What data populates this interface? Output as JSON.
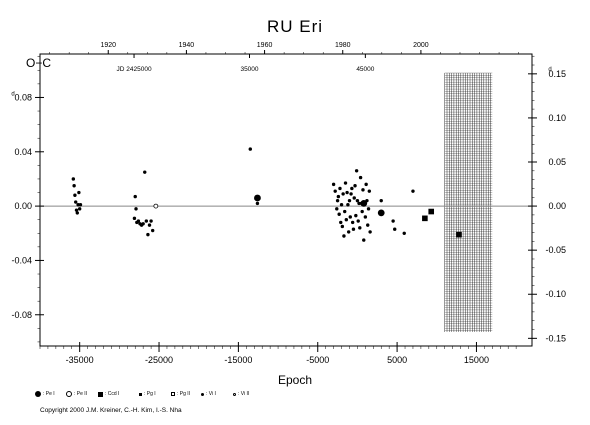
{
  "chart_data": {
    "type": "scatter",
    "title": "RU Eri",
    "xlabel": "Epoch",
    "ylabel": "O−C",
    "ylabel_unit": "d",
    "xlim": [
      -40000,
      22000
    ],
    "ylim": [
      -0.103,
      0.112
    ],
    "x_ticks": [
      "-35000",
      "-25000",
      "-15000",
      "-5000",
      "5000",
      "15000"
    ],
    "x_tick_values": [
      -35000,
      -25000,
      -15000,
      -5000,
      5000,
      15000
    ],
    "y_left_ticks": [
      "-0.08",
      "-0.04",
      "0.00",
      "0.04",
      "0.08"
    ],
    "y_left_tick_values": [
      -0.08,
      -0.04,
      0.0,
      0.04,
      0.08
    ],
    "y_right_ticks": [
      "-0.15",
      "-0.10",
      "-0.05",
      "0.00",
      "0.05",
      "0.10",
      "0.15"
    ],
    "y_right_tick_values": [
      -0.15,
      -0.1,
      -0.05,
      0.0,
      0.05,
      0.1,
      0.15
    ],
    "y_right_scale_min": -0.1587,
    "y_right_scale_max": 0.1725,
    "top_year_ticks": [
      "1920",
      "1940",
      "1960",
      "1980",
      "2000"
    ],
    "top_year_epochs": [
      -31400,
      -21550,
      -11700,
      -1850,
      8000
    ],
    "jd_ticks": [
      "JD 2425000",
      "35000",
      "45000"
    ],
    "jd_tick_epochs": [
      -28150,
      -13600,
      1000
    ],
    "hatched_region_x": [
      11000,
      17000
    ],
    "zero_line": 0.0,
    "series": [
      {
        "marker": "small-dot",
        "x": [
          -35800,
          -35700,
          -35600,
          -35500,
          -35400,
          -35300,
          -35200,
          -35100,
          -35000,
          -34900,
          -28100,
          -28000,
          -27900,
          -27800,
          -27600,
          -27400,
          -27200,
          -27000,
          -26800,
          -26600,
          -26400,
          -26200,
          -26000,
          -25800,
          -13500,
          -12600,
          -3000,
          -2800,
          -2600,
          -2500,
          -2400,
          -2300,
          -2200,
          -2100,
          -2000,
          -1900,
          -1800,
          -1700,
          -1600,
          -1500,
          -1400,
          -1300,
          -1200,
          -1100,
          -1000,
          -900,
          -800,
          -700,
          -600,
          -500,
          -400,
          -300,
          -200,
          -100,
          0,
          100,
          200,
          300,
          400,
          500,
          600,
          700,
          800,
          900,
          1000,
          1100,
          1200,
          1300,
          1400,
          1500,
          1600,
          3000,
          4500,
          4700,
          5900,
          7000
        ],
        "y": [
          0.02,
          0.015,
          0.008,
          0.003,
          -0.003,
          -0.005,
          0.001,
          0.01,
          -0.002,
          0.001,
          -0.009,
          0.007,
          -0.002,
          -0.012,
          -0.011,
          -0.013,
          -0.014,
          -0.013,
          0.025,
          -0.011,
          -0.021,
          -0.014,
          -0.011,
          -0.018,
          0.042,
          0.002,
          0.016,
          0.011,
          -0.002,
          0.004,
          0.007,
          -0.006,
          0.013,
          -0.012,
          0.001,
          -0.015,
          0.009,
          -0.022,
          -0.004,
          0.017,
          -0.01,
          0.01,
          0.001,
          -0.019,
          0.004,
          -0.008,
          0.009,
          0.013,
          -0.012,
          -0.017,
          0.006,
          0.015,
          -0.007,
          0.026,
          0.004,
          -0.011,
          0.002,
          -0.016,
          0.021,
          0.002,
          -0.004,
          0.012,
          -0.025,
          0.001,
          -0.008,
          0.016,
          0.004,
          -0.014,
          -0.002,
          0.011,
          -0.019,
          0.004,
          -0.011,
          -0.017,
          -0.02,
          0.011
        ]
      },
      {
        "marker": "large-dot",
        "x": [
          -12600,
          800,
          3000
        ],
        "y": [
          0.006,
          0.002,
          -0.005
        ]
      },
      {
        "marker": "open-circle",
        "x": [
          -25400
        ],
        "y": [
          0.0
        ]
      },
      {
        "marker": "square",
        "x": [
          8500,
          9300,
          12800
        ],
        "y": [
          -0.009,
          -0.004,
          -0.021
        ]
      }
    ]
  },
  "legend": {
    "items": [
      {
        "label": ": Pe I",
        "marker": "large-dot"
      },
      {
        "label": ": Pe II",
        "marker": "open-circle"
      },
      {
        "label": ": Ccd I",
        "marker": "square"
      },
      {
        "label": ": Pg I",
        "marker": "small-square"
      },
      {
        "label": ": Pg II",
        "marker": "open-square"
      },
      {
        "label": ": Vi I",
        "marker": "small-dot"
      },
      {
        "label": ": Vi II",
        "marker": "tiny-open-circle"
      }
    ]
  },
  "copyright": "Copyright 2000 J.M. Kreiner, C.-H. Kim, I.-S. Nha"
}
